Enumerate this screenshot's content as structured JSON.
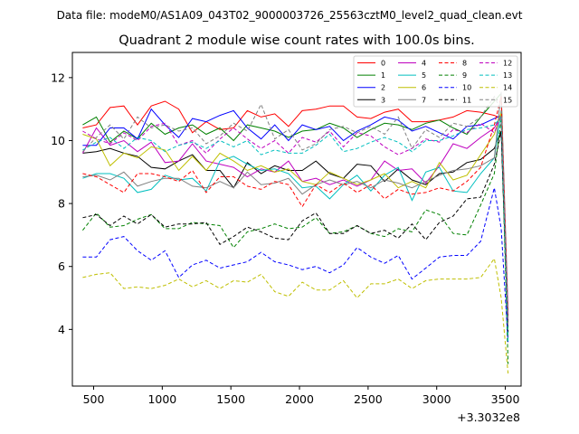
{
  "header": {
    "data_file": "Data file: modeM0/AS1A09_043T02_9000003726_25563cztM0_level2_quad_clean.evt"
  },
  "chart_data": {
    "type": "line",
    "title": "Quadrant 2 module wise count rates with 100.0s bins.",
    "xlabel": "",
    "ylabel": "",
    "x_offset_label": "+3.3032e8",
    "xlim": [
      345,
      3615
    ],
    "ylim": [
      2.2,
      12.8
    ],
    "xticks": [
      500,
      1000,
      1500,
      2000,
      2500,
      3000,
      3500
    ],
    "yticks": [
      4,
      6,
      8,
      10,
      12
    ],
    "grid": false,
    "legend_placement": "top-right",
    "x": [
      420,
      520,
      620,
      720,
      820,
      920,
      1020,
      1120,
      1220,
      1320,
      1420,
      1520,
      1620,
      1720,
      1820,
      1920,
      2020,
      2120,
      2220,
      2320,
      2420,
      2520,
      2620,
      2720,
      2820,
      2920,
      3020,
      3120,
      3220,
      3320,
      3420,
      3470,
      3520
    ],
    "series": [
      {
        "name": "0",
        "color": "#ff0000",
        "dash": false,
        "values": [
          10.4,
          10.5,
          11.05,
          11.1,
          10.5,
          11.1,
          11.25,
          11.0,
          10.25,
          10.6,
          10.35,
          10.4,
          10.95,
          10.75,
          10.85,
          10.45,
          10.95,
          11.0,
          11.1,
          11.1,
          10.75,
          10.7,
          10.9,
          11.0,
          10.6,
          10.6,
          10.65,
          10.75,
          10.95,
          10.9,
          10.8,
          10.7,
          4.5
        ]
      },
      {
        "name": "1",
        "color": "#008000",
        "dash": false,
        "values": [
          10.5,
          10.75,
          9.95,
          10.3,
          10.05,
          10.55,
          10.2,
          10.4,
          10.5,
          10.2,
          10.4,
          10.0,
          10.5,
          10.4,
          10.3,
          10.1,
          10.3,
          10.35,
          10.55,
          10.4,
          10.1,
          10.35,
          10.55,
          10.5,
          10.35,
          10.55,
          10.65,
          10.4,
          10.2,
          10.75,
          11.25,
          11.5,
          4.1
        ]
      },
      {
        "name": "2",
        "color": "#0000ff",
        "dash": false,
        "values": [
          9.85,
          9.85,
          10.4,
          10.4,
          10.05,
          11.0,
          10.5,
          10.1,
          10.7,
          10.6,
          10.8,
          10.95,
          10.4,
          10.05,
          10.5,
          10.0,
          10.5,
          10.35,
          10.45,
          10.0,
          10.3,
          10.5,
          10.75,
          10.65,
          10.3,
          10.45,
          10.25,
          10.05,
          10.45,
          10.5,
          10.7,
          10.8,
          4.3
        ]
      },
      {
        "name": "3",
        "color": "#000000",
        "dash": false,
        "values": [
          9.6,
          9.65,
          9.75,
          9.6,
          9.5,
          9.15,
          9.1,
          9.35,
          9.55,
          9.05,
          9.05,
          8.5,
          9.3,
          8.95,
          9.2,
          9.05,
          9.05,
          9.35,
          8.95,
          8.8,
          9.25,
          9.2,
          8.7,
          9.1,
          8.75,
          8.6,
          8.95,
          9.0,
          9.3,
          9.4,
          9.75,
          10.3,
          3.8
        ]
      },
      {
        "name": "4",
        "color": "#bf00bf",
        "dash": false,
        "values": [
          9.6,
          10.4,
          9.85,
          10.0,
          9.65,
          9.95,
          9.3,
          9.35,
          9.9,
          9.35,
          9.25,
          9.15,
          8.85,
          9.1,
          9.0,
          9.35,
          8.7,
          8.8,
          8.6,
          8.75,
          8.55,
          8.75,
          9.35,
          9.05,
          9.1,
          8.65,
          9.2,
          9.9,
          9.75,
          10.1,
          10.4,
          10.8,
          4.2
        ]
      },
      {
        "name": "5",
        "color": "#00bfbf",
        "dash": false,
        "values": [
          8.8,
          8.95,
          8.95,
          8.8,
          8.35,
          8.45,
          8.9,
          8.75,
          8.8,
          8.4,
          9.35,
          9.5,
          9.25,
          9.05,
          9.1,
          8.95,
          8.5,
          8.55,
          8.15,
          8.6,
          8.9,
          8.4,
          8.9,
          9.15,
          8.1,
          9.0,
          9.15,
          8.4,
          8.35,
          8.95,
          9.45,
          10.95,
          3.9
        ]
      },
      {
        "name": "6",
        "color": "#bfbf00",
        "dash": false,
        "values": [
          10.2,
          10.05,
          9.2,
          9.6,
          9.45,
          9.8,
          9.7,
          9.05,
          9.5,
          9.05,
          9.6,
          9.35,
          9.05,
          9.2,
          9.0,
          9.1,
          8.7,
          8.6,
          9.0,
          8.8,
          8.6,
          8.75,
          8.95,
          8.5,
          8.7,
          8.5,
          9.3,
          8.75,
          8.9,
          9.55,
          10.2,
          10.9,
          3.7
        ]
      },
      {
        "name": "7",
        "color": "#808080",
        "dash": false,
        "values": [
          8.85,
          8.9,
          8.75,
          9.0,
          8.55,
          8.7,
          8.8,
          8.8,
          8.55,
          8.5,
          8.7,
          8.5,
          9.0,
          8.6,
          8.65,
          8.8,
          8.3,
          8.6,
          8.75,
          8.6,
          8.7,
          8.5,
          8.75,
          8.65,
          8.5,
          8.7,
          8.9,
          9.05,
          9.1,
          9.2,
          9.45,
          11.55,
          4.6
        ]
      },
      {
        "name": "8",
        "color": "#ff0000",
        "dash": true,
        "values": [
          8.95,
          8.85,
          8.6,
          8.35,
          8.95,
          8.95,
          8.85,
          8.7,
          9.05,
          8.35,
          8.85,
          8.85,
          8.55,
          8.45,
          8.7,
          8.6,
          7.9,
          8.6,
          8.35,
          8.65,
          8.35,
          8.6,
          8.15,
          8.45,
          8.3,
          8.35,
          8.5,
          8.4,
          8.7,
          9.15,
          10.5,
          11.4,
          4.2
        ]
      },
      {
        "name": "9",
        "color": "#008000",
        "dash": true,
        "values": [
          7.15,
          7.7,
          7.25,
          7.3,
          7.5,
          7.65,
          7.2,
          7.2,
          7.4,
          7.35,
          7.3,
          6.6,
          7.1,
          7.2,
          7.35,
          7.2,
          7.25,
          7.55,
          7.05,
          7.1,
          7.3,
          7.05,
          6.95,
          7.2,
          7.1,
          7.8,
          7.65,
          7.05,
          7.0,
          7.95,
          8.95,
          10.7,
          2.9
        ]
      },
      {
        "name": "10",
        "color": "#0000ff",
        "dash": true,
        "values": [
          6.3,
          6.3,
          6.85,
          6.95,
          6.5,
          6.2,
          6.5,
          5.65,
          6.05,
          6.2,
          5.95,
          6.05,
          6.15,
          6.45,
          6.15,
          6.05,
          5.9,
          6.0,
          5.8,
          6.05,
          6.6,
          6.3,
          6.1,
          6.35,
          5.6,
          5.95,
          6.3,
          6.35,
          6.35,
          6.8,
          8.5,
          7.2,
          3.6
        ]
      },
      {
        "name": "11",
        "color": "#000000",
        "dash": true,
        "values": [
          7.55,
          7.65,
          7.3,
          7.6,
          7.35,
          7.65,
          7.25,
          7.35,
          7.35,
          7.4,
          6.7,
          6.95,
          7.25,
          7.1,
          6.9,
          6.85,
          7.45,
          7.7,
          7.05,
          7.05,
          7.3,
          7.05,
          7.15,
          6.9,
          7.35,
          6.85,
          7.4,
          7.6,
          8.15,
          8.2,
          9.25,
          10.3,
          3.9
        ]
      },
      {
        "name": "12",
        "color": "#bf00bf",
        "dash": true,
        "values": [
          10.3,
          10.05,
          9.9,
          10.25,
          10.0,
          10.45,
          10.55,
          9.85,
          10.0,
          9.6,
          10.05,
          10.4,
          10.05,
          9.75,
          10.0,
          9.6,
          10.1,
          9.95,
          10.3,
          9.8,
          10.25,
          10.15,
          9.8,
          9.55,
          9.75,
          10.05,
          9.95,
          10.35,
          10.25,
          10.55,
          10.25,
          10.8,
          4.4
        ]
      },
      {
        "name": "13",
        "color": "#00bfbf",
        "dash": true,
        "values": [
          9.7,
          9.95,
          10.1,
          9.75,
          10.1,
          10.0,
          9.65,
          9.85,
          9.95,
          9.75,
          10.0,
          9.8,
          10.0,
          9.55,
          9.7,
          9.6,
          9.6,
          9.85,
          10.2,
          9.65,
          9.75,
          9.95,
          10.1,
          9.95,
          9.65,
          10.0,
          10.0,
          10.15,
          10.35,
          10.4,
          10.5,
          10.75,
          3.6
        ]
      },
      {
        "name": "14",
        "color": "#bfbf00",
        "dash": true,
        "values": [
          5.65,
          5.75,
          5.8,
          5.3,
          5.35,
          5.3,
          5.4,
          5.6,
          5.35,
          5.55,
          5.3,
          5.55,
          5.5,
          5.75,
          5.2,
          5.05,
          5.5,
          5.25,
          5.25,
          5.55,
          5.0,
          5.45,
          5.45,
          5.6,
          5.3,
          5.55,
          5.6,
          5.6,
          5.6,
          5.65,
          6.25,
          5.0,
          2.6
        ]
      },
      {
        "name": "15",
        "color": "#808080",
        "dash": true,
        "values": [
          9.65,
          10.1,
          10.5,
          10.05,
          10.75,
          10.4,
          10.5,
          10.3,
          10.4,
          9.9,
          10.15,
          10.55,
          10.3,
          11.15,
          10.05,
          10.35,
          9.7,
          9.9,
          10.35,
          10.45,
          10.25,
          10.45,
          10.2,
          10.75,
          9.75,
          10.35,
          10.1,
          10.55,
          10.45,
          10.75,
          11.4,
          10.95,
          4.1
        ]
      }
    ]
  }
}
